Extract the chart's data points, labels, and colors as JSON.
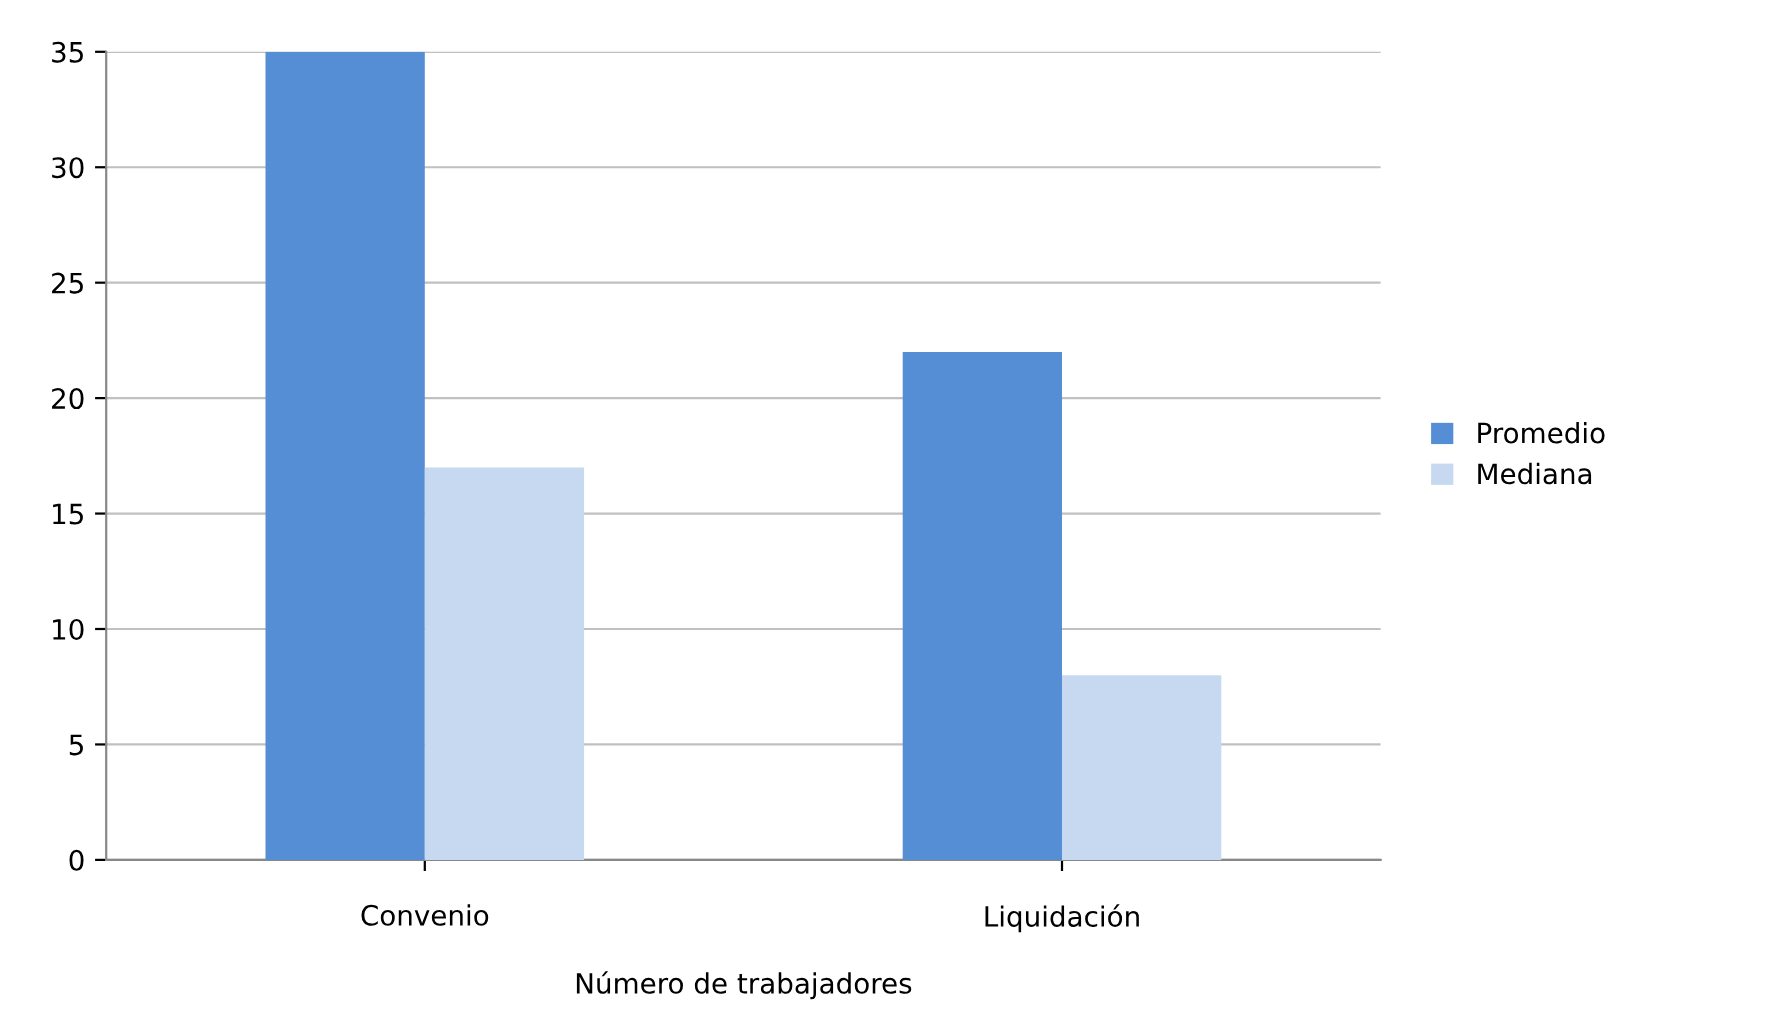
{
  "chart_data": {
    "type": "bar",
    "categories": [
      "Convenio",
      "Liquidación"
    ],
    "xlabel": "Número de trabajadores",
    "series": [
      {
        "name": "Promedio",
        "color": "#558ed5",
        "values": [
          35,
          22
        ]
      },
      {
        "name": "Mediana",
        "color": "#c6d9f1",
        "values": [
          17,
          8
        ]
      }
    ],
    "ylim": [
      0,
      35
    ],
    "yticks": [
      0,
      5,
      10,
      15,
      20,
      25,
      30,
      35
    ],
    "grid": "y",
    "legend": "right"
  }
}
